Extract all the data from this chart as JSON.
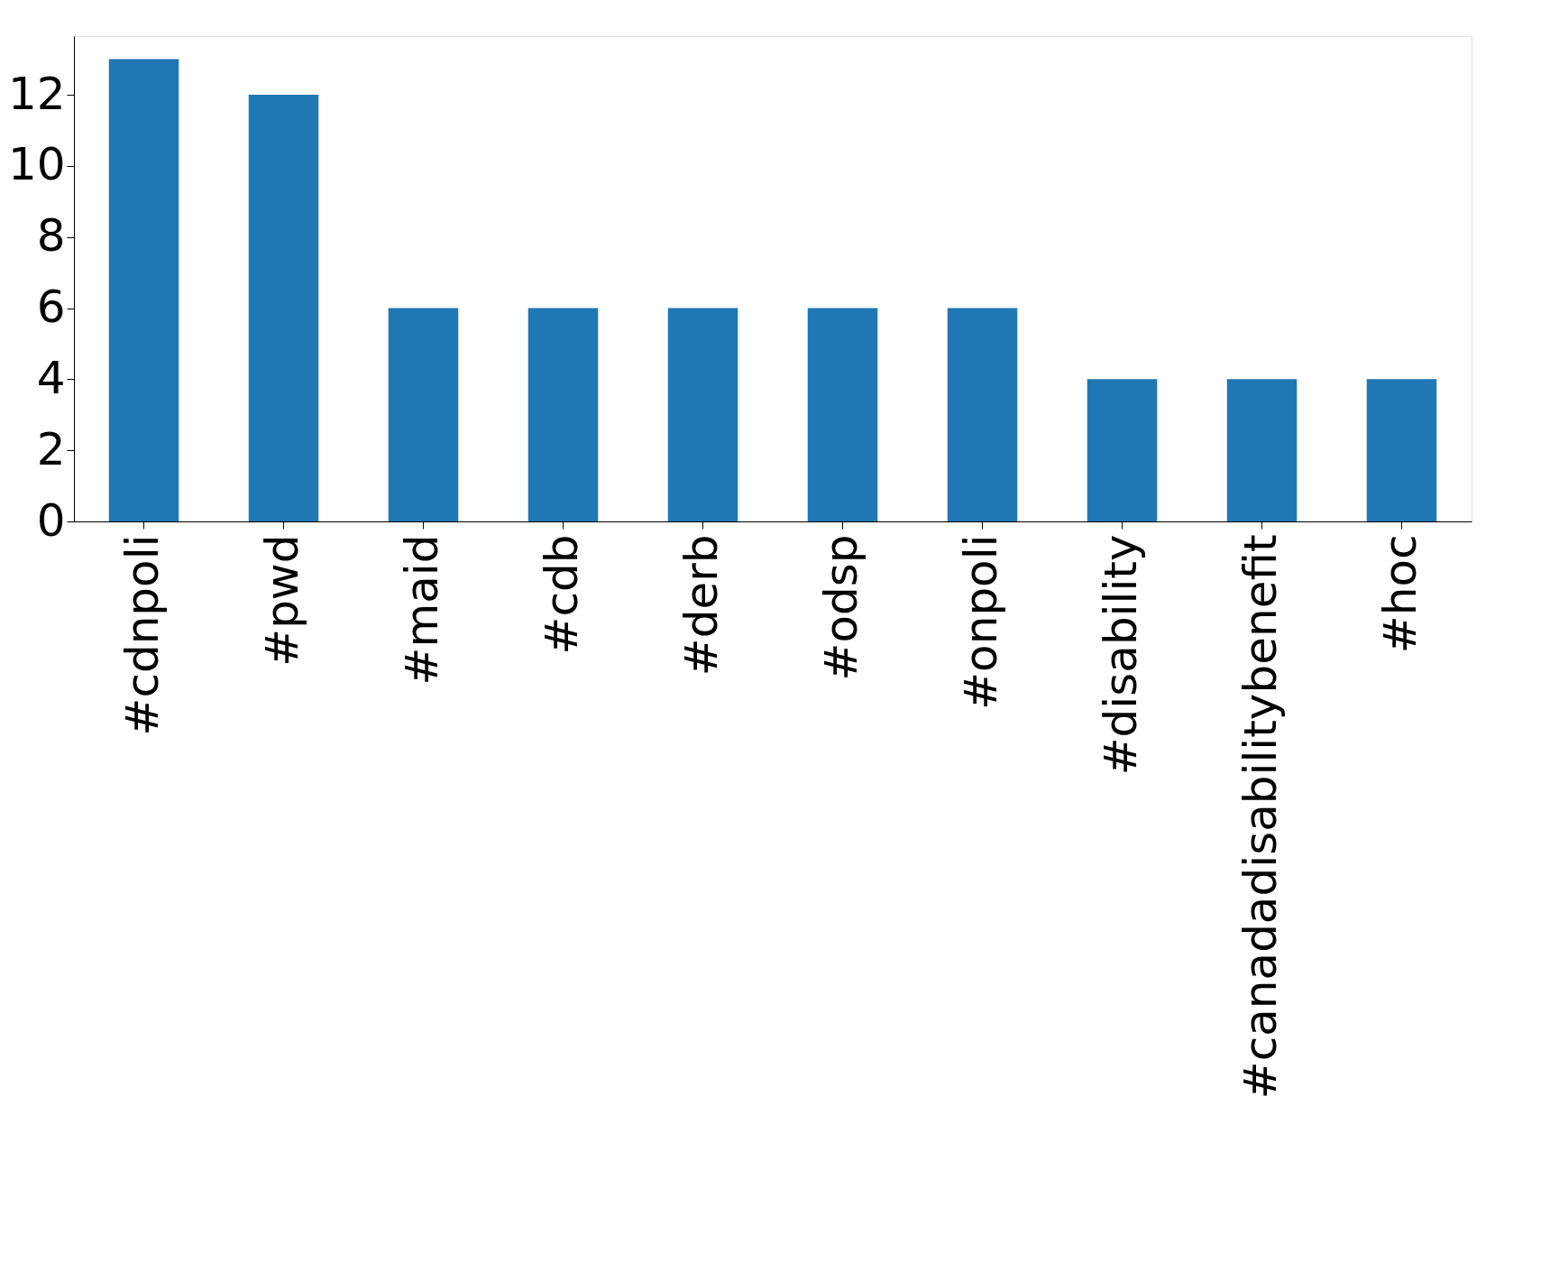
{
  "chart_data": {
    "type": "bar",
    "categories": [
      "#cdnpoli",
      "#pwd",
      "#maid",
      "#cdb",
      "#derb",
      "#odsp",
      "#onpoli",
      "#disability",
      "#canadadisabilitybenefit",
      "#hoc"
    ],
    "values": [
      13,
      12,
      6,
      6,
      6,
      6,
      6,
      4,
      4,
      4
    ],
    "color": "#1f77b4",
    "ylim": [
      0,
      13.65
    ],
    "yticks": [
      0,
      2,
      4,
      6,
      8,
      10,
      12
    ],
    "grid": false
  }
}
